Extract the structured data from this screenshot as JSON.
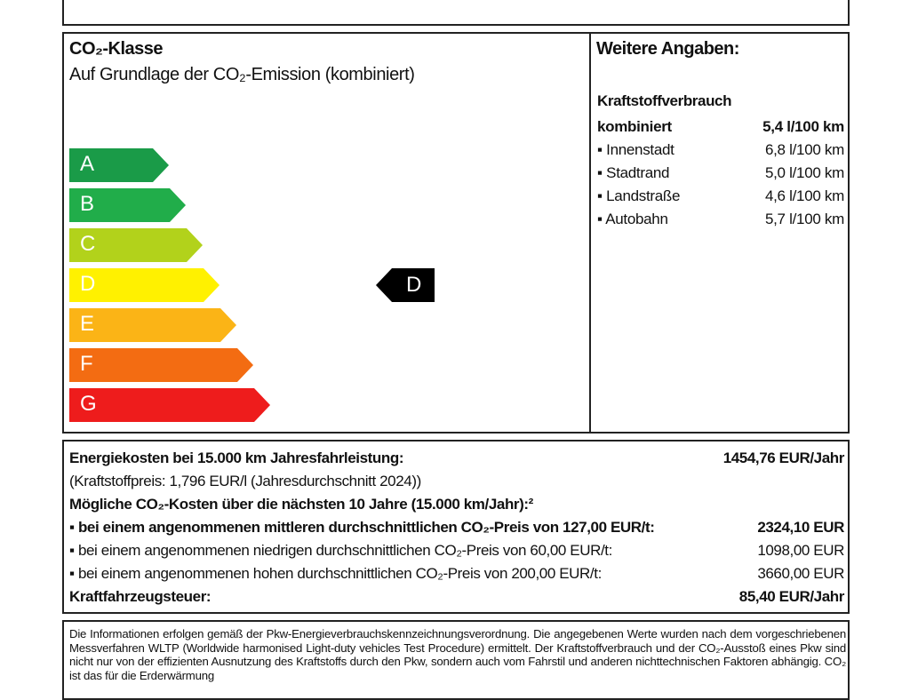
{
  "co2_class": {
    "title": "CO₂-Klasse",
    "subtitle": "Auf Grundlage der CO₂-Emission (kombiniert)",
    "classes": [
      {
        "label": "A",
        "color": "#1a9b48"
      },
      {
        "label": "B",
        "color": "#21ad4a"
      },
      {
        "label": "C",
        "color": "#b2d21b"
      },
      {
        "label": "D",
        "color": "#fff100"
      },
      {
        "label": "E",
        "color": "#fbb416"
      },
      {
        "label": "F",
        "color": "#f36c12"
      },
      {
        "label": "G",
        "color": "#ee1c1c"
      }
    ],
    "current_class": "D",
    "marker_color": "#000000"
  },
  "details": {
    "title": "Weitere Angaben:",
    "fuel_heading": "Kraftstoffverbrauch",
    "rows": [
      {
        "label": "kombiniert",
        "value": "5,4 l/100 km"
      },
      {
        "label": "▪ Innenstadt",
        "value": "6,8 l/100 km"
      },
      {
        "label": "▪ Stadtrand",
        "value": "5,0 l/100 km"
      },
      {
        "label": "▪ Landstraße",
        "value": "4,6 l/100 km"
      },
      {
        "label": "▪ Autobahn",
        "value": "5,7 l/100 km"
      }
    ]
  },
  "costs": {
    "energy_label": "Energiekosten bei 15.000 km Jahresfahrleistung:",
    "energy_value": "1454,76 EUR/Jahr",
    "fuel_price": "(Kraftstoffpreis: 1,796 EUR/l (Jahresdurchschnitt 2024))",
    "co2_heading": "Mögliche CO₂-Kosten über die nächsten 10 Jahre (15.000 km/Jahr):²",
    "co2_mid_label": "▪ bei einem angenommenen mittleren durchschnittlichen CO₂-Preis von 127,00 EUR/t:",
    "co2_mid_value": "2324,10 EUR",
    "co2_low_label": "▪ bei einem angenommenen niedrigen durchschnittlichen CO₂-Preis von 60,00 EUR/t:",
    "co2_low_value": "1098,00 EUR",
    "co2_high_label": "▪ bei einem angenommenen hohen durchschnittlichen CO₂-Preis von 200,00 EUR/t:",
    "co2_high_value": "3660,00 EUR",
    "tax_label": "Kraftfahrzeugsteuer:",
    "tax_value": "85,40 EUR/Jahr"
  },
  "disclaimer": "Die Informationen erfolgen gemäß der Pkw-Energieverbrauchskennzeichnungsverordnung. Die angegebenen Werte wurden nach dem vorgeschriebenen Messverfahren WLTP (Worldwide harmonised Light-duty vehicles Test Procedure) ermittelt. Der Kraftstoffverbrauch und der CO₂-Ausstoß eines Pkw sind nicht nur von der effizienten Ausnutzung des Kraftstoffs durch den Pkw, sondern auch vom Fahrstil und anderen nichttechnischen Faktoren abhängig. CO₂ ist das für die Erderwärmung"
}
